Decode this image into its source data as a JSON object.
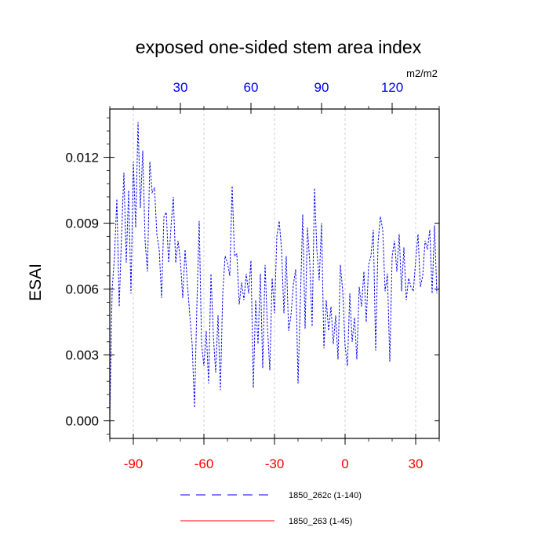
{
  "chart_data": {
    "type": "line",
    "title": "exposed one-sided stem area index",
    "ylabel": "ESAI",
    "units": "m2/m2",
    "grid": "vertical dashed at bottom-axis ticks",
    "colors": {
      "series1": "#0000ff",
      "series2": "#ff0000",
      "bottom_ticks": "#ff0000",
      "top_ticks": "#0000ff"
    },
    "xlim_bottom": [
      -100,
      40
    ],
    "x_ticks_bottom": [
      -90,
      -60,
      -30,
      0,
      30
    ],
    "x_tick_labels_bottom": [
      "-90",
      "-60",
      "-30",
      "0",
      "30"
    ],
    "xlim_top": [
      0,
      140
    ],
    "x_ticks_top": [
      30,
      60,
      90,
      120
    ],
    "x_tick_labels_top": [
      "30",
      "60",
      "90",
      "120"
    ],
    "ylim": [
      -0.0008,
      0.0142
    ],
    "y_ticks": [
      0.0,
      0.003,
      0.006,
      0.009,
      0.012
    ],
    "y_tick_labels": [
      "0.000",
      "0.003",
      "0.006",
      "0.009",
      "0.012"
    ],
    "series": [
      {
        "name": "1850_262c (1-140)",
        "style": "dashed",
        "x": [
          -100,
          -99,
          -98,
          -97,
          -96,
          -95,
          -94,
          -93,
          -92,
          -91,
          -90,
          -89,
          -88,
          -87,
          -86,
          -85,
          -84,
          -83,
          -82,
          -81,
          -80,
          -79,
          -78,
          -77,
          -76,
          -75,
          -74,
          -73,
          -72,
          -71,
          -70,
          -69,
          -68,
          -67,
          -66,
          -65,
          -64,
          -63,
          -62,
          -61,
          -60,
          -59,
          -58,
          -57,
          -56,
          -55,
          -54,
          -53,
          -52,
          -51,
          -50,
          -49,
          -48,
          -47,
          -46,
          -45,
          -44,
          -43,
          -42,
          -41,
          -40,
          -39,
          -38,
          -37,
          -36,
          -35,
          -34,
          -33,
          -32,
          -31,
          -30,
          -29,
          -28,
          -27,
          -26,
          -25,
          -24,
          -23,
          -22,
          -21,
          -20,
          -19,
          -18,
          -17,
          -16,
          -15,
          -14,
          -13,
          -12,
          -11,
          -10,
          -9,
          -8,
          -7,
          -6,
          -5,
          -4,
          -3,
          -2,
          -1,
          0,
          1,
          2,
          3,
          4,
          5,
          6,
          7,
          8,
          9,
          10,
          11,
          12,
          13,
          14,
          15,
          16,
          17,
          18,
          19,
          20,
          21,
          22,
          23,
          24,
          25,
          26,
          27,
          28,
          29,
          30,
          31,
          32,
          33,
          34,
          35,
          36,
          37,
          38,
          39
        ],
        "values": [
          0.0,
          0.006,
          0.0075,
          0.0101,
          0.0052,
          0.0085,
          0.0113,
          0.0072,
          0.0105,
          0.0058,
          0.0118,
          0.0088,
          0.0136,
          0.0097,
          0.0123,
          0.0082,
          0.0068,
          0.0118,
          0.0104,
          0.0106,
          0.0085,
          0.0078,
          0.0056,
          0.0093,
          0.0095,
          0.0072,
          0.0088,
          0.0102,
          0.0072,
          0.0082,
          0.0073,
          0.0056,
          0.0078,
          0.0062,
          0.0048,
          0.0035,
          0.0006,
          0.0052,
          0.0091,
          0.0035,
          0.0025,
          0.0041,
          0.0017,
          0.0067,
          0.0039,
          0.0022,
          0.0048,
          0.0014,
          0.0058,
          0.0075,
          0.0072,
          0.0066,
          0.0107,
          0.0075,
          0.0076,
          0.0053,
          0.0063,
          0.0055,
          0.0067,
          0.0058,
          0.0073,
          0.0015,
          0.0055,
          0.0035,
          0.0067,
          0.0024,
          0.0071,
          0.0043,
          0.0023,
          0.0065,
          0.0049,
          0.0084,
          0.0091,
          0.0078,
          0.0049,
          0.0075,
          0.0041,
          0.0048,
          0.0062,
          0.0069,
          0.0017,
          0.0055,
          0.0094,
          0.0042,
          0.0088,
          0.0072,
          0.0043,
          0.0106,
          0.0078,
          0.0064,
          0.009,
          0.0033,
          0.0055,
          0.0041,
          0.0052,
          0.0035,
          0.0048,
          0.0028,
          0.0071,
          0.0059,
          0.0034,
          0.0025,
          0.0058,
          0.0036,
          0.0047,
          0.0028,
          0.0061,
          0.0052,
          0.0068,
          0.0045,
          0.0071,
          0.0075,
          0.0087,
          0.0032,
          0.0081,
          0.0093,
          0.0087,
          0.0059,
          0.0067,
          0.0027,
          0.0075,
          0.0082,
          0.0068,
          0.0085,
          0.0059,
          0.0079,
          0.0055,
          0.0065,
          0.0061,
          0.0059,
          0.0073,
          0.0085,
          0.0061,
          0.0066,
          0.0082,
          0.0078,
          0.0087,
          0.0058,
          0.0089,
          0.0058
        ]
      },
      {
        "name": "1850_263 (1-45)",
        "style": "solid",
        "x": [],
        "values": []
      }
    ]
  }
}
